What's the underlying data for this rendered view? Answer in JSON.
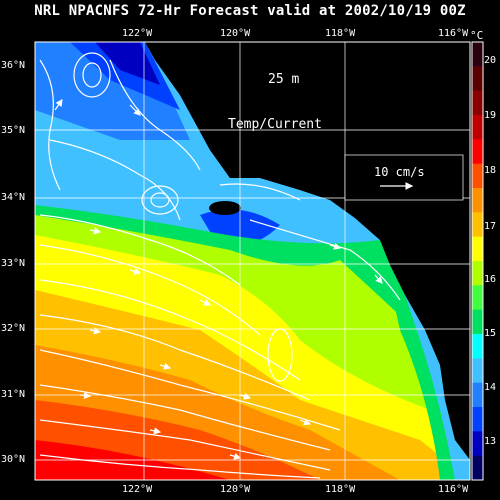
{
  "title": "NRL NPACNFS 72-Hr Forecast valid at 2002/10/19 00Z",
  "depth_label": "25 m",
  "field_label": "Temp/Current",
  "scale_label": "10 cm/s",
  "lon_labels": [
    "122°W",
    "120°W",
    "118°W",
    "116°W"
  ],
  "lat_labels": [
    "36°N",
    "35°N",
    "34°N",
    "33°N",
    "32°N",
    "31°N",
    "30°N"
  ],
  "colorbar": {
    "unit": "°C",
    "ticks": [
      "20",
      "19",
      "18",
      "17",
      "16",
      "15",
      "14",
      "13"
    ],
    "colors": [
      "#2a0010",
      "#5a0000",
      "#8a0000",
      "#c00000",
      "#ff0000",
      "#ff5000",
      "#ff9000",
      "#ffc000",
      "#ffff00",
      "#b0ff00",
      "#40ff40",
      "#00e060",
      "#00ffff",
      "#40c0ff",
      "#2080ff",
      "#0040ff",
      "#0000c0",
      "#000060"
    ]
  },
  "colors": {
    "land": "#000000",
    "grid": "#ffffff",
    "arrow": "#ffffff"
  }
}
